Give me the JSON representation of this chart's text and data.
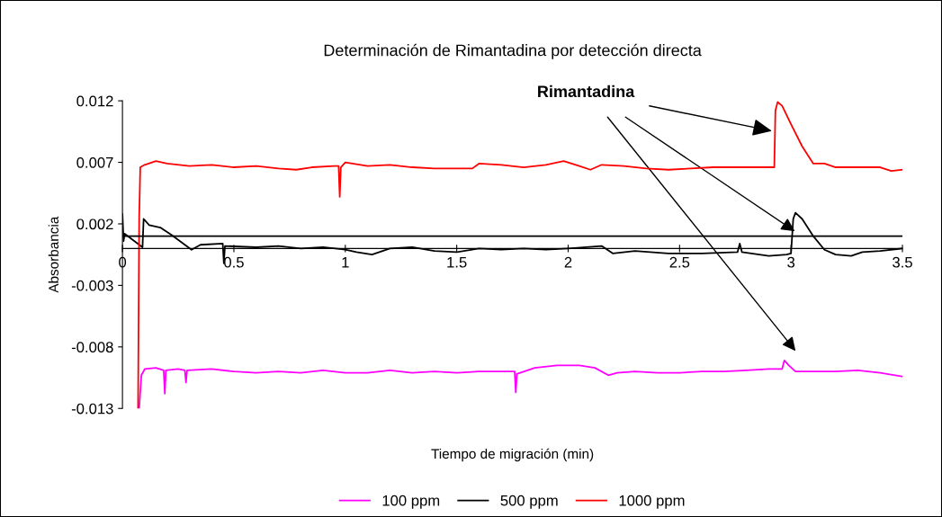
{
  "chart_data": {
    "type": "line",
    "title": "Determinación de Rimantadina por detección directa",
    "xlabel": "Tiempo de migración (min)",
    "ylabel": "Absorbancia",
    "xlim": [
      0,
      3.5
    ],
    "xticks": [
      0,
      0.5,
      1,
      1.5,
      2,
      2.5,
      3,
      3.5
    ],
    "ylim": [
      -0.013,
      0.012
    ],
    "yticks": [
      -0.013,
      -0.008,
      -0.003,
      0.002,
      0.007,
      0.012
    ],
    "grid": false,
    "legend": "bottom",
    "marker": "none",
    "line_style": "solid",
    "ref_lines": [
      {
        "axis": "y",
        "value": 0.001,
        "label": null,
        "color": "#000000"
      }
    ],
    "annotations": [
      {
        "text": "Rimantadina",
        "x": 2.925,
        "y": 0.0095
      }
    ],
    "series": [
      {
        "name": "100 ppm",
        "color": "#ff00ff",
        "x": [
          0.075,
          0.085,
          0.1,
          0.15,
          0.185,
          0.19,
          0.195,
          0.25,
          0.28,
          0.285,
          0.29,
          0.4,
          0.5,
          0.6,
          0.7,
          0.8,
          0.9,
          1.0,
          1.1,
          1.2,
          1.3,
          1.4,
          1.5,
          1.6,
          1.76,
          1.765,
          1.77,
          1.85,
          1.95,
          2.05,
          2.12,
          2.18,
          2.22,
          2.3,
          2.4,
          2.5,
          2.6,
          2.7,
          2.8,
          2.9,
          2.96,
          2.97,
          2.99,
          3.02,
          3.1,
          3.2,
          3.3,
          3.4,
          3.5
        ],
        "values": [
          -0.013,
          -0.0103,
          -0.0098,
          -0.0097,
          -0.0099,
          -0.0118,
          -0.0099,
          -0.0098,
          -0.0099,
          -0.0109,
          -0.0099,
          -0.0098,
          -0.01,
          -0.0101,
          -0.01,
          -0.0101,
          -0.0099,
          -0.0101,
          -0.0101,
          -0.0099,
          -0.0101,
          -0.01,
          -0.0101,
          -0.01,
          -0.01,
          -0.0117,
          -0.0102,
          -0.0097,
          -0.0095,
          -0.0095,
          -0.0097,
          -0.0103,
          -0.0101,
          -0.01,
          -0.0101,
          -0.0101,
          -0.01,
          -0.01,
          -0.0099,
          -0.0098,
          -0.0098,
          -0.0091,
          -0.0095,
          -0.01,
          -0.01,
          -0.01,
          -0.0099,
          -0.0101,
          -0.0104
        ]
      },
      {
        "name": "500 ppm",
        "color": "#000000",
        "x": [
          0,
          0.005,
          0.01,
          0.09,
          0.095,
          0.12,
          0.17,
          0.22,
          0.28,
          0.31,
          0.35,
          0.45,
          0.455,
          0.46,
          0.6,
          0.7,
          0.8,
          0.9,
          1.0,
          1.05,
          1.12,
          1.2,
          1.3,
          1.4,
          1.5,
          1.6,
          1.7,
          1.8,
          1.9,
          2.0,
          2.15,
          2.2,
          2.3,
          2.45,
          2.6,
          2.76,
          2.77,
          2.78,
          2.9,
          2.98,
          3.0,
          3.01,
          3.02,
          3.05,
          3.1,
          3.15,
          3.2,
          3.27,
          3.32,
          3.4,
          3.5
        ],
        "values": [
          0.0028,
          0.0006,
          0.0012,
          0.0001,
          0.0024,
          0.0019,
          0.0017,
          0.0011,
          0.0003,
          -0.0001,
          0.0003,
          0.0004,
          -0.0012,
          0.0002,
          0.0001,
          0.0002,
          0.0,
          0.0001,
          -0.0001,
          -0.0003,
          -0.0005,
          0.0,
          0.0001,
          -0.0002,
          -0.0003,
          0.0,
          -0.0001,
          0.0,
          -0.0001,
          0.0,
          0.0002,
          -0.0004,
          -0.0002,
          -0.0004,
          -0.0004,
          -0.0003,
          0.0004,
          -0.0003,
          -0.0006,
          -0.0005,
          -0.0004,
          0.0024,
          0.0029,
          0.0024,
          0.001,
          -0.0001,
          -0.0005,
          -0.0006,
          -0.0003,
          -0.0002,
          0.0
        ]
      },
      {
        "name": "1000 ppm",
        "color": "#ff0000",
        "x": [
          0.07,
          0.075,
          0.08,
          0.1,
          0.15,
          0.2,
          0.3,
          0.4,
          0.5,
          0.6,
          0.7,
          0.78,
          0.85,
          0.95,
          0.97,
          0.975,
          0.98,
          1.0,
          1.1,
          1.2,
          1.3,
          1.4,
          1.5,
          1.57,
          1.6,
          1.7,
          1.8,
          1.9,
          1.98,
          2.05,
          2.1,
          2.15,
          2.25,
          2.35,
          2.45,
          2.55,
          2.65,
          2.8,
          2.925,
          2.93,
          2.94,
          2.96,
          3.0,
          3.05,
          3.1,
          3.15,
          3.2,
          3.3,
          3.4,
          3.45,
          3.5
        ],
        "values": [
          -0.013,
          0.0025,
          0.0066,
          0.0068,
          0.0071,
          0.0069,
          0.0067,
          0.0068,
          0.0066,
          0.0067,
          0.0065,
          0.0064,
          0.0066,
          0.0067,
          0.0067,
          0.0042,
          0.0066,
          0.007,
          0.0067,
          0.0068,
          0.0066,
          0.0065,
          0.0065,
          0.0065,
          0.0069,
          0.0068,
          0.0066,
          0.0068,
          0.0071,
          0.0067,
          0.0064,
          0.0068,
          0.0067,
          0.0065,
          0.0064,
          0.0065,
          0.0066,
          0.0066,
          0.0066,
          0.0112,
          0.0119,
          0.0116,
          0.0101,
          0.0083,
          0.0069,
          0.0069,
          0.0066,
          0.0066,
          0.0066,
          0.0063,
          0.0064
        ]
      }
    ]
  }
}
